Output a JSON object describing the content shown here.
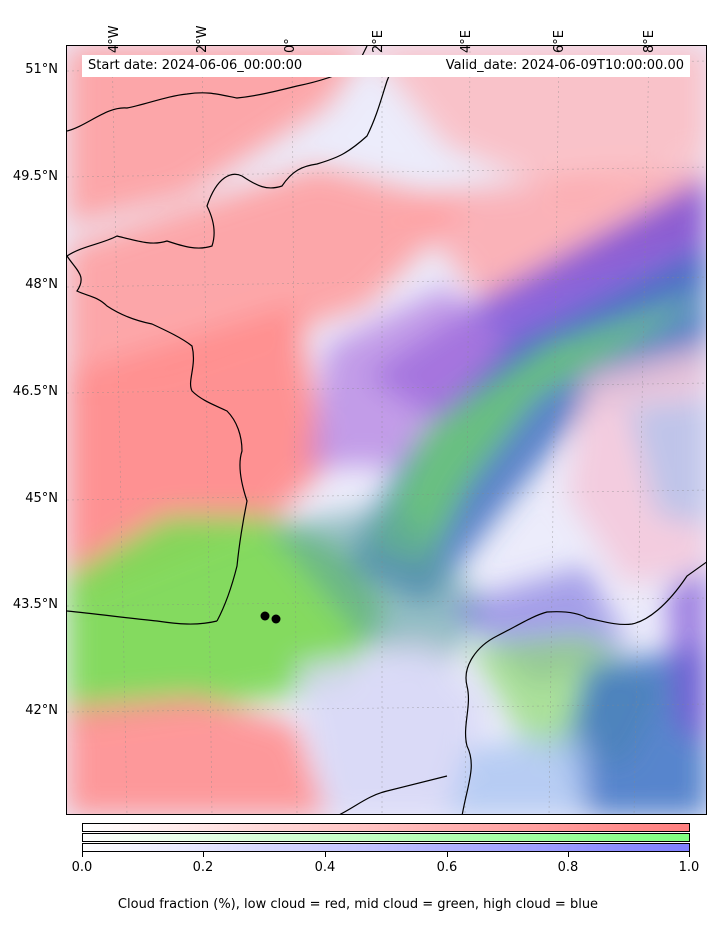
{
  "header": {
    "start_date": "Start date: 2024-06-06_00:00:00",
    "valid_date": "Valid_date: 2024-06-09T10:00:00.00"
  },
  "axes": {
    "lat_labels": [
      "51°N",
      "49.5°N",
      "48°N",
      "46.5°N",
      "45°N",
      "43.5°N",
      "42°N"
    ],
    "lon_labels": [
      "4°W",
      "2°W",
      "0°",
      "2°E",
      "4°E",
      "6°E",
      "8°E"
    ]
  },
  "colorbar": {
    "ticks": [
      "0.0",
      "0.2",
      "0.4",
      "0.6",
      "0.8",
      "1.0"
    ],
    "caption": "Cloud fraction (%), low cloud = red, mid cloud = green, high cloud = blue",
    "colors": {
      "low": "#ff7f7f",
      "mid": "#7fff7f",
      "high": "#7f7fff"
    }
  },
  "map_colors": {
    "low_cloud": "#ff8a8a",
    "mid_cloud": "#7ed957",
    "high_cloud": "#6a5fd8",
    "clear": "#eeeefc"
  }
}
